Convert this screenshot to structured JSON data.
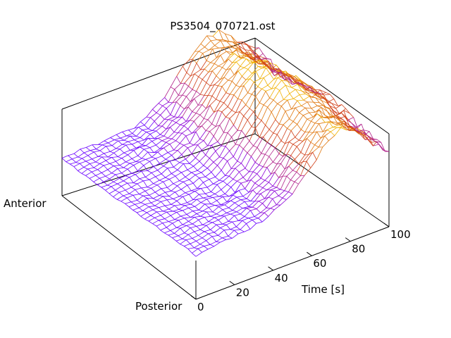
{
  "chart_data": {
    "type": "surface",
    "title": "PS3504_070721.ost",
    "xlabel": "Time [s]",
    "depth_labels": [
      "Anterior",
      "Posterior"
    ],
    "xlim": [
      0,
      100
    ],
    "x_ticks": [
      "0",
      "20",
      "40",
      "60",
      "80",
      "100"
    ],
    "grid": false,
    "colormap": [
      "#6a00ff",
      "#8a00d8",
      "#b0208a",
      "#d0401a",
      "#e07810",
      "#f0b000",
      "#ffff00"
    ],
    "x": [
      0,
      5,
      10,
      15,
      20,
      25,
      30,
      35,
      40,
      45,
      50,
      55,
      60,
      65,
      70,
      75,
      80,
      85,
      90,
      95,
      100
    ],
    "z_profile_mean": [
      0.06,
      0.07,
      0.08,
      0.08,
      0.09,
      0.1,
      0.11,
      0.13,
      0.16,
      0.22,
      0.3,
      0.42,
      0.56,
      0.7,
      0.82,
      0.88,
      0.86,
      0.78,
      0.66,
      0.54,
      0.46
    ],
    "note_rows": 34,
    "note_cols": 32
  }
}
